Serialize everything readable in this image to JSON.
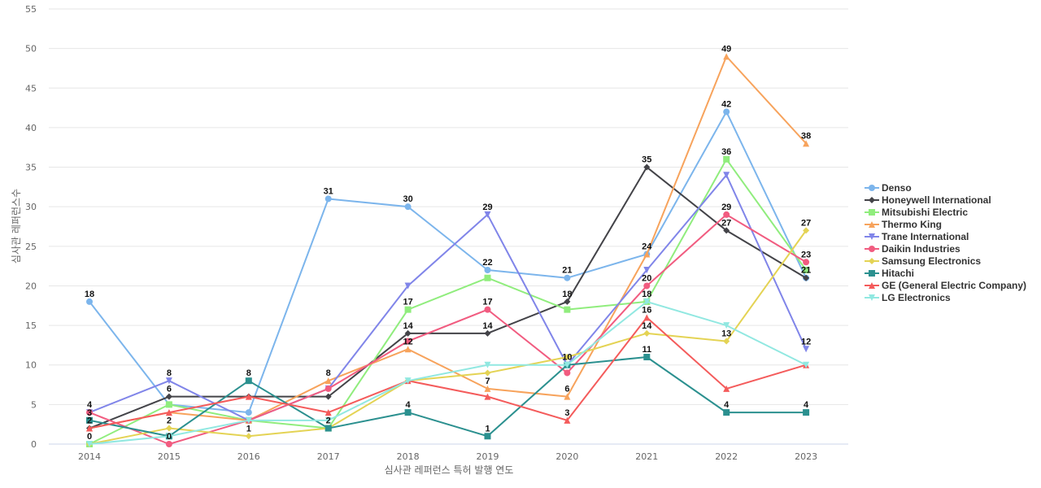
{
  "chart_data": {
    "type": "line",
    "title": "",
    "xlabel": "심사관 레퍼런스 특허 발행 연도",
    "ylabel": "심사관 레퍼런스수",
    "x": [
      "2014",
      "2015",
      "2016",
      "2017",
      "2018",
      "2019",
      "2020",
      "2021",
      "2022",
      "2023"
    ],
    "ylim": [
      0,
      55
    ],
    "yticks": [
      0,
      5,
      10,
      15,
      20,
      25,
      30,
      35,
      40,
      45,
      50,
      55
    ],
    "grid": true,
    "legend_position": "right",
    "data_labels": true,
    "series": [
      {
        "name": "Denso",
        "color": "#7cb5ec",
        "marker": "circle",
        "values": [
          18,
          5,
          4,
          31,
          30,
          22,
          21,
          24,
          42,
          21
        ]
      },
      {
        "name": "Honeywell International",
        "color": "#434348",
        "marker": "diamond",
        "values": [
          2,
          6,
          6,
          6,
          14,
          14,
          18,
          35,
          27,
          21
        ]
      },
      {
        "name": "Mitsubishi Electric",
        "color": "#90ed7d",
        "marker": "square",
        "values": [
          0,
          5,
          3,
          2,
          17,
          21,
          17,
          18,
          36,
          22
        ]
      },
      {
        "name": "Thermo King",
        "color": "#f7a35c",
        "marker": "triangle",
        "values": [
          2,
          4,
          3,
          8,
          12,
          7,
          6,
          24,
          49,
          38
        ]
      },
      {
        "name": "Trane International",
        "color": "#8085e9",
        "marker": "triangle-down",
        "values": [
          4,
          8,
          3,
          7,
          20,
          29,
          10,
          22,
          34,
          12
        ]
      },
      {
        "name": "Daikin Industries",
        "color": "#f15c80",
        "marker": "circle",
        "values": [
          4,
          0,
          3,
          7,
          13,
          17,
          9,
          20,
          29,
          23
        ]
      },
      {
        "name": "Samsung Electronics",
        "color": "#e4d354",
        "marker": "diamond",
        "values": [
          0,
          2,
          1,
          2,
          8,
          9,
          11,
          14,
          13,
          27
        ]
      },
      {
        "name": "Hitachi",
        "color": "#2b908f",
        "marker": "square",
        "values": [
          3,
          1,
          8,
          2,
          4,
          1,
          10,
          11,
          4,
          4
        ]
      },
      {
        "name": "GE (General Electric Company)",
        "color": "#f45b5b",
        "marker": "triangle",
        "values": [
          2,
          4,
          6,
          4,
          8,
          6,
          3,
          16,
          7,
          10
        ]
      },
      {
        "name": "LG Electronics",
        "color": "#91e8e1",
        "marker": "triangle-down",
        "values": [
          0,
          1,
          3,
          3,
          8,
          10,
          10,
          18,
          15,
          10
        ]
      }
    ],
    "visible_data_labels": [
      {
        "series": 0,
        "points": [
          0,
          3,
          4,
          5,
          6,
          7,
          8
        ]
      },
      {
        "series": 1,
        "points": [
          1,
          4,
          5,
          6,
          7,
          8,
          9
        ]
      },
      {
        "series": 2,
        "points": [
          0,
          4,
          8
        ]
      },
      {
        "series": 3,
        "points": [
          3,
          4,
          5,
          6,
          8,
          9
        ]
      },
      {
        "series": 4,
        "points": [
          0,
          1,
          5,
          9
        ]
      },
      {
        "series": 5,
        "points": [
          1,
          5,
          7,
          8,
          9
        ]
      },
      {
        "series": 6,
        "points": [
          1,
          2,
          7,
          8,
          9
        ]
      },
      {
        "series": 7,
        "points": [
          0,
          2,
          3,
          4,
          5,
          6,
          7,
          8,
          9
        ]
      },
      {
        "series": 8,
        "points": [
          0,
          6,
          7
        ]
      },
      {
        "series": 9,
        "points": [
          7
        ]
      }
    ]
  }
}
